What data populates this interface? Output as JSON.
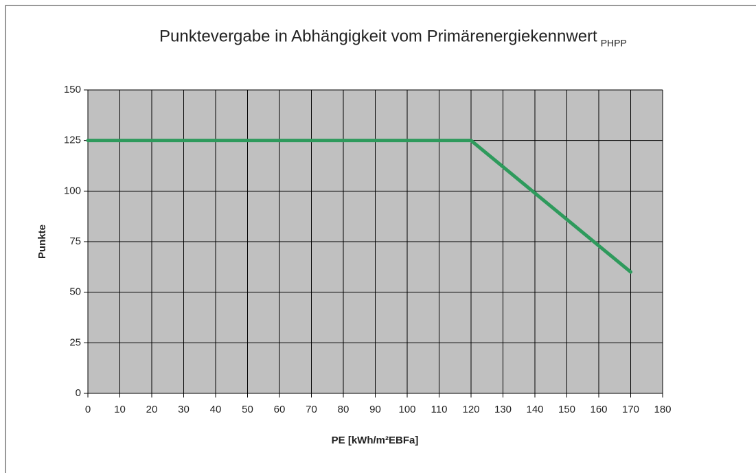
{
  "chart_data": {
    "type": "line",
    "title": "Punktevergabe in Abhängigkeit vom Primärenergiekennwert",
    "title_subscript": "PHPP",
    "x_label": "PE [kWh/m²EBFa]",
    "y_label": "Punkte",
    "x": [
      0,
      10,
      20,
      30,
      40,
      50,
      60,
      70,
      80,
      90,
      100,
      110,
      120,
      130,
      140,
      150,
      160,
      170
    ],
    "series": [
      {
        "name": "Punkte",
        "color": "#2e9a5c",
        "values": [
          125,
          125,
          125,
          125,
          125,
          125,
          125,
          125,
          125,
          125,
          125,
          125,
          125,
          112,
          99,
          86,
          73,
          60
        ]
      }
    ],
    "xlim": [
      0,
      180
    ],
    "xticks": [
      0,
      10,
      20,
      30,
      40,
      50,
      60,
      70,
      80,
      90,
      100,
      110,
      120,
      130,
      140,
      150,
      160,
      170,
      180
    ],
    "ylim": [
      0,
      150
    ],
    "yticks": [
      0,
      25,
      50,
      75,
      100,
      125,
      150
    ],
    "grid": true,
    "plot_background": "#c0c0c0"
  }
}
